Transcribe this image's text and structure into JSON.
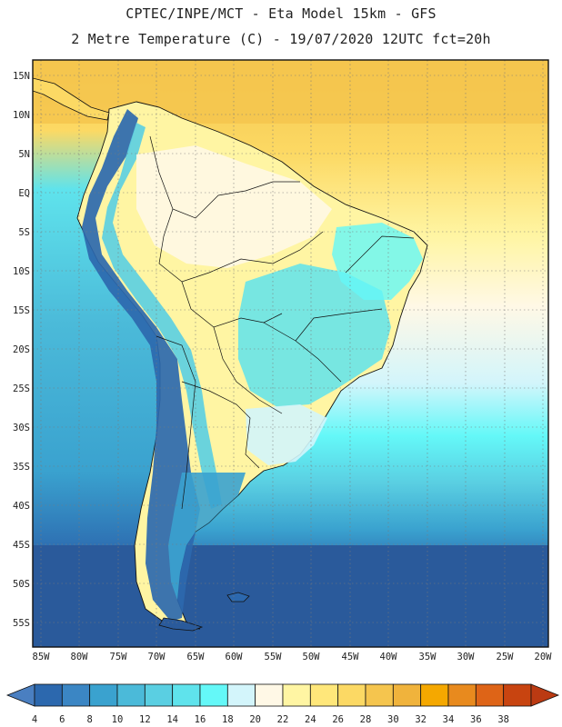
{
  "header": {
    "line1": "CPTEC/INPE/MCT -  Eta Model 15km - GFS",
    "line2": "2 Metre Temperature (C) - 19/07/2020 12UTC fct=20h"
  },
  "axes": {
    "lat_labels": [
      "15N",
      "10N",
      "5N",
      "EQ",
      "5S",
      "10S",
      "15S",
      "20S",
      "25S",
      "30S",
      "35S",
      "40S",
      "45S",
      "50S",
      "55S"
    ],
    "lon_labels": [
      "85W",
      "80W",
      "75W",
      "70W",
      "65W",
      "60W",
      "55W",
      "50W",
      "45W",
      "40W",
      "35W",
      "30W",
      "25W",
      "20W"
    ],
    "lat_range": [
      15.5,
      -57.5
    ],
    "lon_range": [
      -85,
      -20
    ],
    "grid": true
  },
  "colorbar": {
    "ticks": [
      "4",
      "6",
      "8",
      "10",
      "12",
      "14",
      "16",
      "18",
      "20",
      "22",
      "24",
      "26",
      "28",
      "30",
      "32",
      "34",
      "36",
      "38"
    ],
    "colors": [
      "#4a7fc1",
      "#2c68ae",
      "#3b86c4",
      "#3aa2cf",
      "#4bbad9",
      "#5acfe2",
      "#5fe3ec",
      "#64f8f8",
      "#d3f5fb",
      "#fff8e6",
      "#fff5a3",
      "#ffe77a",
      "#fcd964",
      "#f5c54e",
      "#f0b33c",
      "#f5a800",
      "#e88a1e",
      "#de6417",
      "#c84410",
      "#bb3a12"
    ]
  },
  "colors": {
    "ocean_south_deep": "#2c5f9e",
    "ocean_mid": "#3aa2cf",
    "ocean_cyan": "#5fe3ec",
    "ocean_light_cyan": "#64f8f8",
    "north_warm": "#f5c54e",
    "land_warm": "#fcd964",
    "land_pale": "#fff8e6"
  }
}
